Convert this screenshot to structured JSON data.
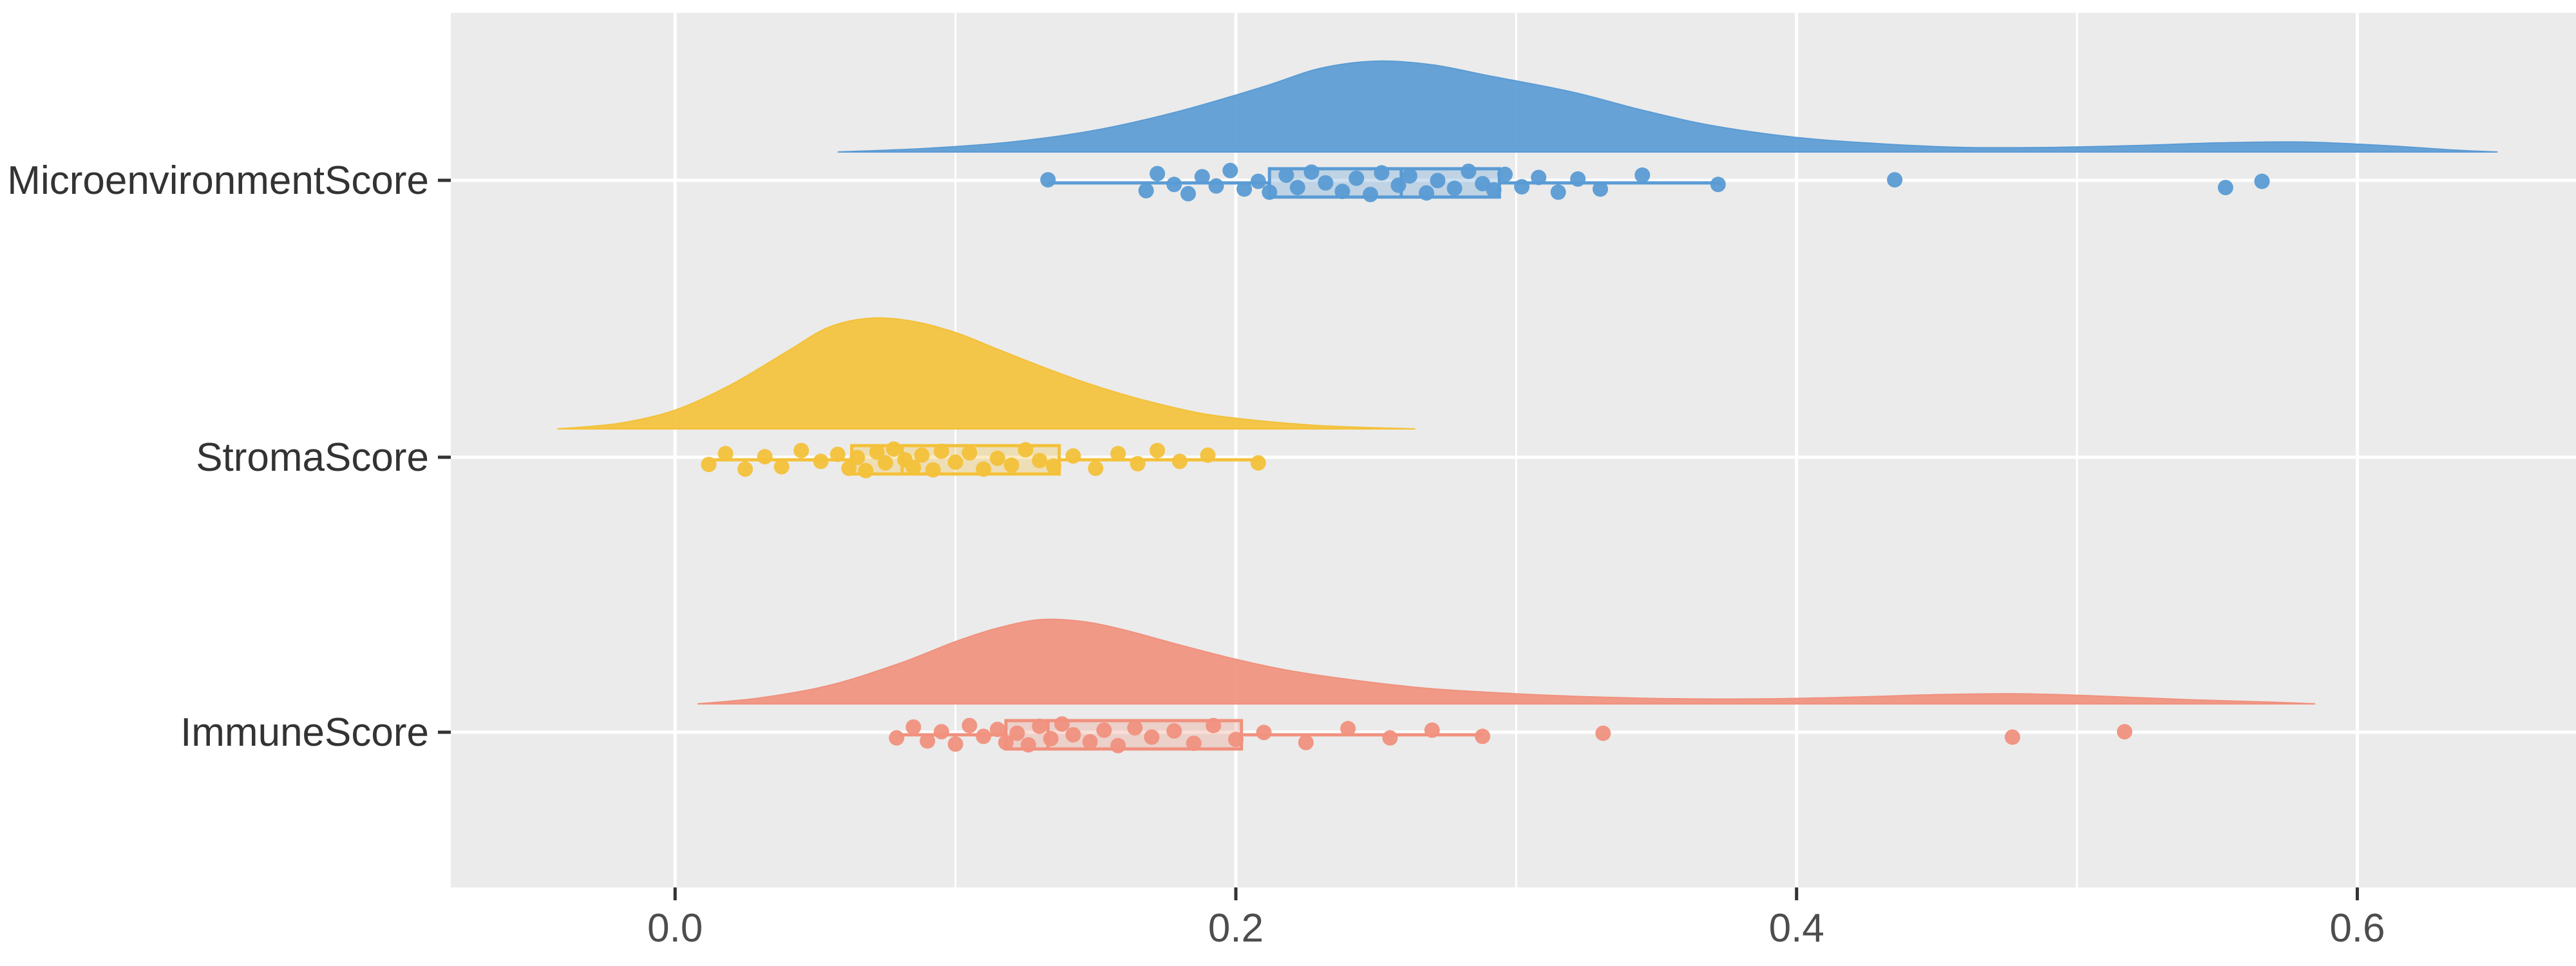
{
  "chart_data": {
    "type": "raincloud",
    "orientation": "horizontal",
    "title": "",
    "xlabel": "",
    "ylabel": "",
    "panel_background": "#EBEBEB",
    "grid_color": "#FFFFFF",
    "axis_text_color": "#4D4D4D",
    "category_text_color": "#333333",
    "tick_mark_color": "#333333",
    "xlim": [
      -0.08,
      0.678
    ],
    "x_ticks": [
      0.0,
      0.2,
      0.4,
      0.6
    ],
    "x_tick_labels": [
      "0.0",
      "0.2",
      "0.4",
      "0.6"
    ],
    "x_minor_ticks": [
      0.1,
      0.3,
      0.5
    ],
    "categories": [
      "MicroenvironmentScore",
      "StromaScore",
      "ImmuneScore"
    ],
    "legend": "none",
    "series": [
      {
        "name": "MicroenvironmentScore",
        "color": "#5A9BD4",
        "peak_rel": 0.82,
        "box": {
          "whisker_low": 0.133,
          "q1": 0.212,
          "median": 0.259,
          "q3": 0.294,
          "whisker_high": 0.373
        },
        "outliers": [
          0.435,
          0.553,
          0.566
        ],
        "density": [
          [
            0.058,
            0
          ],
          [
            0.09,
            0.04
          ],
          [
            0.12,
            0.11
          ],
          [
            0.15,
            0.24
          ],
          [
            0.18,
            0.45
          ],
          [
            0.21,
            0.72
          ],
          [
            0.23,
            0.92
          ],
          [
            0.25,
            1.0
          ],
          [
            0.27,
            0.96
          ],
          [
            0.29,
            0.84
          ],
          [
            0.32,
            0.66
          ],
          [
            0.345,
            0.46
          ],
          [
            0.37,
            0.29
          ],
          [
            0.4,
            0.16
          ],
          [
            0.43,
            0.09
          ],
          [
            0.46,
            0.05
          ],
          [
            0.49,
            0.05
          ],
          [
            0.52,
            0.07
          ],
          [
            0.55,
            0.1
          ],
          [
            0.58,
            0.11
          ],
          [
            0.61,
            0.07
          ],
          [
            0.635,
            0.02
          ],
          [
            0.65,
            0
          ]
        ],
        "points": [
          [
            0.133,
            -0.2
          ],
          [
            0.168,
            0.5
          ],
          [
            0.172,
            -0.6
          ],
          [
            0.178,
            0.1
          ],
          [
            0.183,
            0.7
          ],
          [
            0.188,
            -0.4
          ],
          [
            0.193,
            0.2
          ],
          [
            0.198,
            -0.8
          ],
          [
            0.203,
            0.4
          ],
          [
            0.208,
            -0.1
          ],
          [
            0.212,
            0.6
          ],
          [
            0.218,
            -0.5
          ],
          [
            0.222,
            0.3
          ],
          [
            0.227,
            -0.7
          ],
          [
            0.232,
            0.0
          ],
          [
            0.238,
            0.55
          ],
          [
            0.243,
            -0.3
          ],
          [
            0.248,
            0.75
          ],
          [
            0.252,
            -0.65
          ],
          [
            0.258,
            0.15
          ],
          [
            0.262,
            -0.45
          ],
          [
            0.268,
            0.65
          ],
          [
            0.272,
            -0.15
          ],
          [
            0.278,
            0.35
          ],
          [
            0.283,
            -0.75
          ],
          [
            0.288,
            0.05
          ],
          [
            0.292,
            0.45
          ],
          [
            0.296,
            -0.55
          ],
          [
            0.302,
            0.25
          ],
          [
            0.308,
            -0.35
          ],
          [
            0.315,
            0.6
          ],
          [
            0.322,
            -0.25
          ],
          [
            0.33,
            0.4
          ],
          [
            0.345,
            -0.5
          ],
          [
            0.372,
            0.1
          ],
          [
            0.435,
            -0.2
          ],
          [
            0.553,
            0.3
          ],
          [
            0.566,
            -0.1
          ]
        ]
      },
      {
        "name": "StromaScore",
        "color": "#F3C13A",
        "peak_rel": 1.0,
        "box": {
          "whisker_low": 0.012,
          "q1": 0.063,
          "median": 0.081,
          "q3": 0.137,
          "whisker_high": 0.209
        },
        "outliers": [],
        "density": [
          [
            -0.042,
            0
          ],
          [
            -0.02,
            0.05
          ],
          [
            0.0,
            0.17
          ],
          [
            0.02,
            0.4
          ],
          [
            0.04,
            0.7
          ],
          [
            0.055,
            0.92
          ],
          [
            0.07,
            1.0
          ],
          [
            0.085,
            0.97
          ],
          [
            0.1,
            0.87
          ],
          [
            0.115,
            0.72
          ],
          [
            0.13,
            0.57
          ],
          [
            0.145,
            0.43
          ],
          [
            0.16,
            0.31
          ],
          [
            0.175,
            0.21
          ],
          [
            0.19,
            0.13
          ],
          [
            0.21,
            0.07
          ],
          [
            0.23,
            0.03
          ],
          [
            0.25,
            0.01
          ],
          [
            0.264,
            0
          ]
        ],
        "points": [
          [
            0.012,
            0.3
          ],
          [
            0.018,
            -0.4
          ],
          [
            0.025,
            0.6
          ],
          [
            0.032,
            -0.2
          ],
          [
            0.038,
            0.45
          ],
          [
            0.045,
            -0.6
          ],
          [
            0.052,
            0.1
          ],
          [
            0.058,
            -0.35
          ],
          [
            0.062,
            0.55
          ],
          [
            0.065,
            -0.15
          ],
          [
            0.068,
            0.7
          ],
          [
            0.072,
            -0.5
          ],
          [
            0.075,
            0.2
          ],
          [
            0.078,
            -0.7
          ],
          [
            0.082,
            0.0
          ],
          [
            0.085,
            0.5
          ],
          [
            0.088,
            -0.3
          ],
          [
            0.092,
            0.65
          ],
          [
            0.095,
            -0.55
          ],
          [
            0.1,
            0.15
          ],
          [
            0.105,
            -0.45
          ],
          [
            0.11,
            0.6
          ],
          [
            0.115,
            -0.1
          ],
          [
            0.12,
            0.35
          ],
          [
            0.125,
            -0.65
          ],
          [
            0.13,
            0.05
          ],
          [
            0.135,
            0.4
          ],
          [
            0.142,
            -0.25
          ],
          [
            0.15,
            0.55
          ],
          [
            0.158,
            -0.4
          ],
          [
            0.165,
            0.25
          ],
          [
            0.172,
            -0.6
          ],
          [
            0.18,
            0.1
          ],
          [
            0.19,
            -0.3
          ],
          [
            0.208,
            0.2
          ]
        ]
      },
      {
        "name": "ImmuneScore",
        "color": "#F0917E",
        "peak_rel": 0.76,
        "box": {
          "whisker_low": 0.08,
          "q1": 0.118,
          "median": 0.133,
          "q3": 0.202,
          "whisker_high": 0.288
        },
        "outliers": [
          0.331,
          0.477,
          0.517
        ],
        "density": [
          [
            0.008,
            0
          ],
          [
            0.03,
            0.07
          ],
          [
            0.055,
            0.22
          ],
          [
            0.08,
            0.48
          ],
          [
            0.1,
            0.74
          ],
          [
            0.115,
            0.9
          ],
          [
            0.13,
            1.0
          ],
          [
            0.145,
            0.98
          ],
          [
            0.16,
            0.88
          ],
          [
            0.18,
            0.7
          ],
          [
            0.2,
            0.53
          ],
          [
            0.22,
            0.39
          ],
          [
            0.245,
            0.27
          ],
          [
            0.27,
            0.18
          ],
          [
            0.3,
            0.12
          ],
          [
            0.33,
            0.08
          ],
          [
            0.36,
            0.06
          ],
          [
            0.39,
            0.06
          ],
          [
            0.42,
            0.08
          ],
          [
            0.45,
            0.11
          ],
          [
            0.48,
            0.12
          ],
          [
            0.51,
            0.09
          ],
          [
            0.54,
            0.05
          ],
          [
            0.57,
            0.02
          ],
          [
            0.585,
            0
          ]
        ],
        "points": [
          [
            0.079,
            0.2
          ],
          [
            0.085,
            -0.5
          ],
          [
            0.09,
            0.4
          ],
          [
            0.095,
            -0.2
          ],
          [
            0.1,
            0.6
          ],
          [
            0.105,
            -0.6
          ],
          [
            0.11,
            0.1
          ],
          [
            0.115,
            -0.35
          ],
          [
            0.118,
            0.5
          ],
          [
            0.122,
            -0.1
          ],
          [
            0.126,
            0.65
          ],
          [
            0.13,
            -0.55
          ],
          [
            0.134,
            0.25
          ],
          [
            0.138,
            -0.7
          ],
          [
            0.142,
            0.0
          ],
          [
            0.148,
            0.45
          ],
          [
            0.153,
            -0.3
          ],
          [
            0.158,
            0.7
          ],
          [
            0.164,
            -0.45
          ],
          [
            0.17,
            0.15
          ],
          [
            0.178,
            -0.25
          ],
          [
            0.185,
            0.55
          ],
          [
            0.192,
            -0.6
          ],
          [
            0.2,
            0.3
          ],
          [
            0.21,
            -0.15
          ],
          [
            0.225,
            0.5
          ],
          [
            0.24,
            -0.4
          ],
          [
            0.255,
            0.2
          ],
          [
            0.27,
            -0.3
          ],
          [
            0.288,
            0.1
          ],
          [
            0.331,
            -0.1
          ],
          [
            0.477,
            0.15
          ],
          [
            0.517,
            -0.2
          ]
        ]
      }
    ]
  }
}
